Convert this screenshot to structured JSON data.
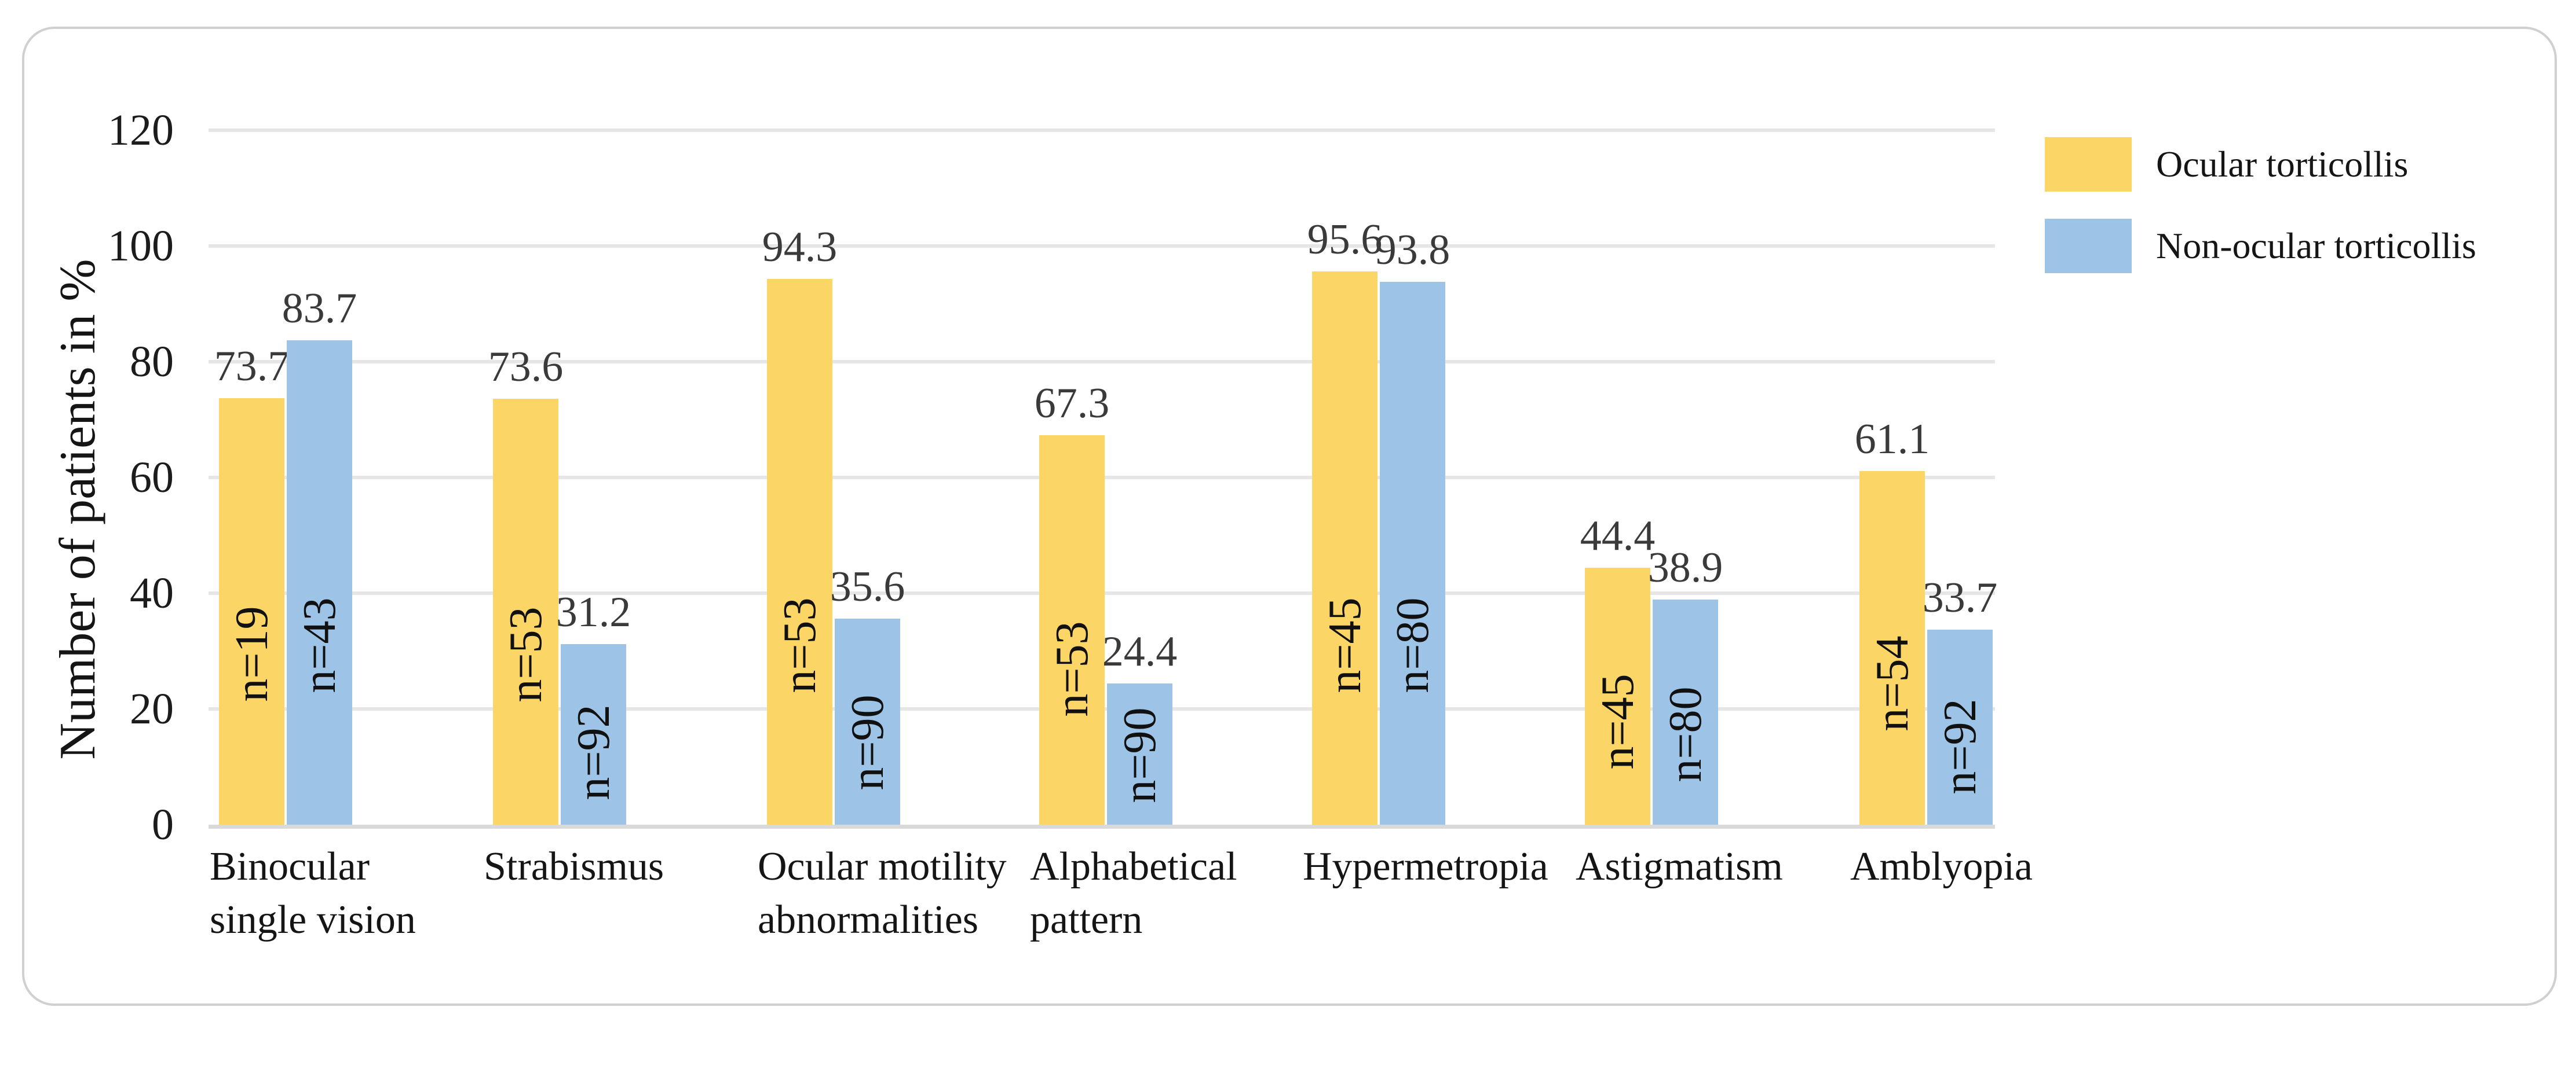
{
  "chart_data": {
    "type": "bar",
    "title": "",
    "xlabel": "",
    "ylabel": "Number of patients in %",
    "ylim": [
      0,
      120
    ],
    "yticks": [
      0,
      20,
      40,
      60,
      80,
      100,
      120
    ],
    "grid": true,
    "legend_position": "top-right",
    "categories": [
      [
        "Binocular",
        "single vision"
      ],
      [
        "Strabismus"
      ],
      [
        "Ocular motility",
        "abnormalities"
      ],
      [
        "Alphabetical",
        "pattern"
      ],
      [
        "Hypermetropia"
      ],
      [
        "Astigmatism"
      ],
      [
        "Amblyopia"
      ]
    ],
    "series": [
      {
        "name": "Ocular torticollis",
        "color": "#FBD566",
        "values": [
          73.7,
          73.6,
          94.3,
          67.3,
          95.6,
          44.4,
          61.1
        ],
        "bar_labels": [
          "n=19",
          "n=53",
          "n=53",
          "n=53",
          "n=45",
          "n=45",
          "n=54"
        ]
      },
      {
        "name": "Non-ocular torticollis",
        "color": "#9DC3E6",
        "values": [
          83.7,
          31.2,
          35.6,
          24.4,
          93.8,
          38.9,
          33.7
        ],
        "bar_labels": [
          "n=43",
          "n=92",
          "n=90",
          "n=90",
          "n=80",
          "n=80",
          "n=92"
        ]
      }
    ]
  }
}
